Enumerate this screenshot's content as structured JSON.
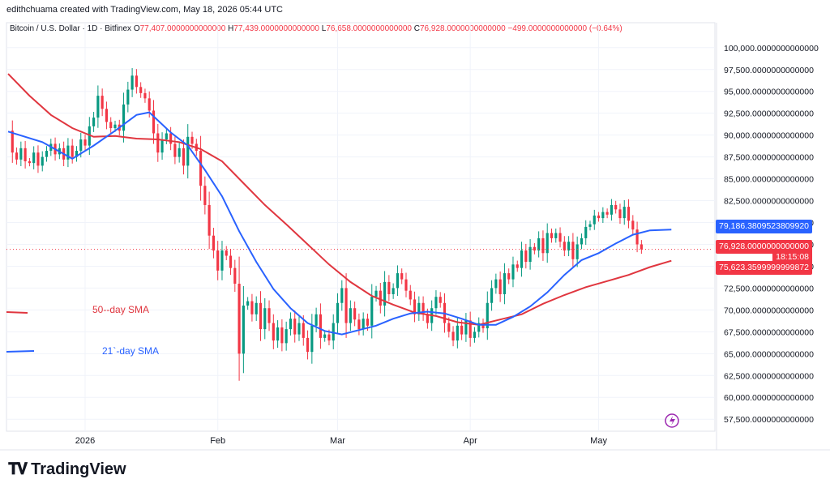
{
  "header": {
    "credit": "edithchuama created with TradingView.com, May 18, 2026 05:44 UTC"
  },
  "ohlc": {
    "symbol": "Bitcoin / U.S. Dollar · 1D · Bitfinex",
    "open_label": "O",
    "open": "77,407.0000000000000",
    "high_label": "H",
    "high": "77,439.0000000000000",
    "low_label": "L",
    "low": "76,658.0000000000000",
    "close_label": "C",
    "close": "76,928.0000000000000",
    "change": "−499.0000000000000 (−0.64%)"
  },
  "price_badges": {
    "sma21": "79,186.3809523809920",
    "last": "76,928.0000000000000",
    "countdown": "18:15:08",
    "sma50": "75,623.3599999999872"
  },
  "legend": {
    "sma50_label": "50--day SMA",
    "sma21_label": "21`-day SMA"
  },
  "footer": {
    "brand": "TradingView"
  },
  "colors": {
    "up": "#089981",
    "down": "#f23645",
    "sma50": "#e0363f",
    "sma21": "#2962ff",
    "grid": "#f0f3fa",
    "text": "#131722"
  },
  "chart_data": {
    "type": "candlestick",
    "ylim": [
      56500,
      101000
    ],
    "y_ticks": [
      "100,000.0000000000000",
      "97,500.0000000000000",
      "95,000.0000000000000",
      "92,500.0000000000000",
      "90,000.0000000000000",
      "87,500.0000000000000",
      "85,000.0000000000000",
      "82,500.0000000000000",
      "80,000.0000000000000",
      "77,500.0000000000000",
      "75,000.0000000000000",
      "72,500.0000000000000",
      "70,000.0000000000000",
      "67,500.0000000000000",
      "65,000.0000000000000",
      "62,500.0000000000000",
      "60,000.0000000000000",
      "57,500.0000000000000"
    ],
    "x_ticks": [
      {
        "label": "2026",
        "day": 18
      },
      {
        "label": "Feb",
        "day": 49
      },
      {
        "label": "Mar",
        "day": 77
      },
      {
        "label": "Apr",
        "day": 108
      },
      {
        "label": "May",
        "day": 138
      }
    ],
    "first_day": 0,
    "last_day": 155,
    "close_series": [
      90500,
      88000,
      87200,
      88500,
      87000,
      86800,
      88000,
      86500,
      87500,
      88200,
      89000,
      87800,
      88500,
      87200,
      88800,
      87500,
      88200,
      89500,
      88800,
      91000,
      92000,
      94500,
      93000,
      91500,
      90800,
      91200,
      90500,
      93500,
      95200,
      96800,
      95500,
      94800,
      94200,
      92800,
      90200,
      88000,
      89500,
      90200,
      89000,
      87500,
      88500,
      86500,
      89800,
      89000,
      88200,
      84200,
      82000,
      78500,
      76800,
      74500,
      76800,
      76200,
      74800,
      73000,
      65000,
      70500,
      71000,
      69500,
      70800,
      67800,
      70200,
      68500,
      66500,
      68000,
      66200,
      67800,
      69000,
      67200,
      68500,
      66800,
      65200,
      68200,
      69500,
      66800,
      67200,
      66500,
      68500,
      70800,
      72500,
      68500,
      70200,
      68900,
      67800,
      69000,
      68200,
      71500,
      72200,
      70500,
      73200,
      71800,
      72500,
      74200,
      73500,
      72200,
      71200,
      69500,
      70800,
      69500,
      68500,
      70200,
      71500,
      70800,
      68500,
      67500,
      66500,
      68200,
      67200,
      68800,
      66800,
      67500,
      68500,
      67900,
      70800,
      72500,
      73500,
      71800,
      74200,
      73500,
      75200,
      74800,
      76800,
      75500,
      77200,
      76800,
      78200,
      76500,
      78800,
      78200,
      78800,
      77800,
      76800,
      77800,
      75800,
      77500,
      78200,
      79500,
      79800,
      80800,
      80500,
      81200,
      80900,
      82000,
      81500,
      80500,
      81800,
      80200,
      79200,
      77500,
      76928
    ],
    "sma21": {
      "name": "21`-day SMA",
      "values": [
        [
          0,
          90400
        ],
        [
          8,
          89200
        ],
        [
          15,
          87300
        ],
        [
          20,
          88800
        ],
        [
          25,
          90500
        ],
        [
          30,
          92300
        ],
        [
          33,
          92600
        ],
        [
          38,
          90300
        ],
        [
          42,
          88800
        ],
        [
          46,
          86000
        ],
        [
          50,
          83000
        ],
        [
          54,
          79000
        ],
        [
          58,
          75500
        ],
        [
          62,
          72400
        ],
        [
          66,
          70200
        ],
        [
          70,
          68500
        ],
        [
          74,
          67600
        ],
        [
          78,
          67200
        ],
        [
          82,
          67700
        ],
        [
          86,
          68200
        ],
        [
          90,
          69000
        ],
        [
          94,
          69600
        ],
        [
          98,
          69800
        ],
        [
          102,
          69600
        ],
        [
          106,
          69000
        ],
        [
          110,
          68300
        ],
        [
          114,
          68300
        ],
        [
          118,
          69200
        ],
        [
          122,
          70400
        ],
        [
          126,
          72000
        ],
        [
          130,
          74000
        ],
        [
          134,
          75700
        ],
        [
          138,
          76500
        ],
        [
          142,
          77600
        ],
        [
          146,
          78600
        ],
        [
          150,
          79100
        ],
        [
          155,
          79186
        ]
      ]
    },
    "sma50": {
      "name": "50--day SMA",
      "values": [
        [
          0,
          97000
        ],
        [
          5,
          94500
        ],
        [
          10,
          92300
        ],
        [
          15,
          90800
        ],
        [
          20,
          89800
        ],
        [
          25,
          89900
        ],
        [
          30,
          89600
        ],
        [
          35,
          89500
        ],
        [
          40,
          89200
        ],
        [
          45,
          88400
        ],
        [
          50,
          87000
        ],
        [
          55,
          84500
        ],
        [
          60,
          82000
        ],
        [
          65,
          79800
        ],
        [
          70,
          77500
        ],
        [
          75,
          75200
        ],
        [
          80,
          73200
        ],
        [
          85,
          71600
        ],
        [
          90,
          70600
        ],
        [
          95,
          69700
        ],
        [
          100,
          69300
        ],
        [
          105,
          68600
        ],
        [
          110,
          68300
        ],
        [
          115,
          68900
        ],
        [
          120,
          69500
        ],
        [
          125,
          70700
        ],
        [
          130,
          71700
        ],
        [
          135,
          72600
        ],
        [
          140,
          73300
        ],
        [
          145,
          74000
        ],
        [
          150,
          74900
        ],
        [
          155,
          75623
        ]
      ]
    }
  }
}
